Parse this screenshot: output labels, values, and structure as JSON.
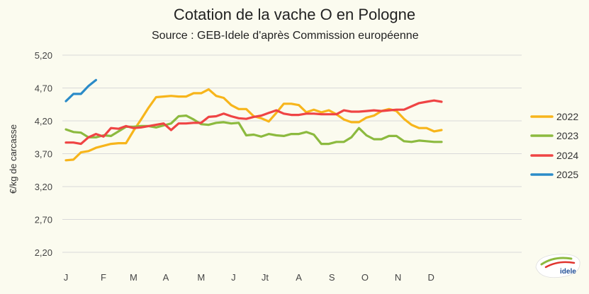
{
  "title": "Cotation de la vache O en Pologne",
  "subtitle": "Source : GEB-Idele d'après Commission européenne",
  "logo_text": "idele",
  "chart_data": {
    "type": "line",
    "ylabel": "€/kg de carcasse",
    "yticks": [
      "5,20",
      "4,70",
      "4,20",
      "3,70",
      "3,20",
      "2,70",
      "2,20"
    ],
    "ylim": [
      2.2,
      5.2
    ],
    "xlim": [
      0,
      52
    ],
    "months": [
      {
        "label": "J",
        "week": 0
      },
      {
        "label": "F",
        "week": 5
      },
      {
        "label": "M",
        "week": 9
      },
      {
        "label": "A",
        "week": 13.3
      },
      {
        "label": "M",
        "week": 18
      },
      {
        "label": "J",
        "week": 22.3
      },
      {
        "label": "Jt",
        "week": 26.5
      },
      {
        "label": "A",
        "week": 31
      },
      {
        "label": "S",
        "week": 35.4
      },
      {
        "label": "O",
        "week": 39.8
      },
      {
        "label": "N",
        "week": 44.2
      },
      {
        "label": "D",
        "week": 48.6
      }
    ],
    "grid": true,
    "legend": "right",
    "series": [
      {
        "name": "2022",
        "color": "#f7b51b",
        "points": [
          [
            0,
            3.6
          ],
          [
            1,
            3.61
          ],
          [
            2,
            3.72
          ],
          [
            3,
            3.74
          ],
          [
            4,
            3.79
          ],
          [
            5,
            3.82
          ],
          [
            6,
            3.85
          ],
          [
            7,
            3.86
          ],
          [
            8,
            3.86
          ],
          [
            9,
            4.05
          ],
          [
            10,
            4.22
          ],
          [
            11,
            4.4
          ],
          [
            12,
            4.56
          ],
          [
            13,
            4.57
          ],
          [
            14,
            4.58
          ],
          [
            15,
            4.57
          ],
          [
            16,
            4.57
          ],
          [
            17,
            4.62
          ],
          [
            18,
            4.62
          ],
          [
            19,
            4.68
          ],
          [
            20,
            4.58
          ],
          [
            21,
            4.55
          ],
          [
            22,
            4.44
          ],
          [
            23,
            4.38
          ],
          [
            24,
            4.38
          ],
          [
            25,
            4.27
          ],
          [
            26,
            4.24
          ],
          [
            27,
            4.19
          ],
          [
            28,
            4.32
          ],
          [
            29,
            4.46
          ],
          [
            30,
            4.46
          ],
          [
            31,
            4.44
          ],
          [
            32,
            4.33
          ],
          [
            33,
            4.37
          ],
          [
            34,
            4.33
          ],
          [
            35,
            4.36
          ],
          [
            36,
            4.3
          ],
          [
            37,
            4.22
          ],
          [
            38,
            4.18
          ],
          [
            39,
            4.18
          ],
          [
            40,
            4.25
          ],
          [
            41,
            4.28
          ],
          [
            42,
            4.35
          ],
          [
            43,
            4.38
          ],
          [
            44,
            4.35
          ],
          [
            45,
            4.23
          ],
          [
            46,
            4.14
          ],
          [
            47,
            4.09
          ],
          [
            48,
            4.09
          ],
          [
            49,
            4.04
          ],
          [
            50,
            4.06
          ]
        ]
      },
      {
        "name": "2023",
        "color": "#8cba3f",
        "points": [
          [
            0,
            4.07
          ],
          [
            1,
            4.03
          ],
          [
            2,
            4.02
          ],
          [
            3,
            3.95
          ],
          [
            4,
            3.95
          ],
          [
            5,
            3.98
          ],
          [
            6,
            3.97
          ],
          [
            7,
            4.04
          ],
          [
            8,
            4.11
          ],
          [
            9,
            4.11
          ],
          [
            10,
            4.12
          ],
          [
            11,
            4.12
          ],
          [
            12,
            4.1
          ],
          [
            13,
            4.13
          ],
          [
            14,
            4.16
          ],
          [
            15,
            4.27
          ],
          [
            16,
            4.28
          ],
          [
            17,
            4.22
          ],
          [
            18,
            4.15
          ],
          [
            19,
            4.14
          ],
          [
            20,
            4.17
          ],
          [
            21,
            4.18
          ],
          [
            22,
            4.16
          ],
          [
            23,
            4.17
          ],
          [
            24,
            3.98
          ],
          [
            25,
            3.99
          ],
          [
            26,
            3.96
          ],
          [
            27,
            4.0
          ],
          [
            28,
            3.98
          ],
          [
            29,
            3.97
          ],
          [
            30,
            4.0
          ],
          [
            31,
            4.0
          ],
          [
            32,
            4.03
          ],
          [
            33,
            3.99
          ],
          [
            34,
            3.85
          ],
          [
            35,
            3.85
          ],
          [
            36,
            3.88
          ],
          [
            37,
            3.88
          ],
          [
            38,
            3.95
          ],
          [
            39,
            4.09
          ],
          [
            40,
            3.98
          ],
          [
            41,
            3.92
          ],
          [
            42,
            3.92
          ],
          [
            43,
            3.97
          ],
          [
            44,
            3.97
          ],
          [
            45,
            3.89
          ],
          [
            46,
            3.88
          ],
          [
            47,
            3.9
          ],
          [
            48,
            3.89
          ],
          [
            49,
            3.88
          ],
          [
            50,
            3.88
          ]
        ]
      },
      {
        "name": "2024",
        "color": "#ef4444",
        "points": [
          [
            0,
            3.87
          ],
          [
            1,
            3.87
          ],
          [
            2,
            3.85
          ],
          [
            3,
            3.95
          ],
          [
            4,
            4.0
          ],
          [
            5,
            3.96
          ],
          [
            6,
            4.09
          ],
          [
            7,
            4.08
          ],
          [
            8,
            4.12
          ],
          [
            9,
            4.09
          ],
          [
            10,
            4.1
          ],
          [
            11,
            4.12
          ],
          [
            12,
            4.14
          ],
          [
            13,
            4.16
          ],
          [
            14,
            4.06
          ],
          [
            15,
            4.16
          ],
          [
            16,
            4.16
          ],
          [
            17,
            4.17
          ],
          [
            18,
            4.17
          ],
          [
            19,
            4.26
          ],
          [
            20,
            4.27
          ],
          [
            21,
            4.31
          ],
          [
            22,
            4.27
          ],
          [
            23,
            4.24
          ],
          [
            24,
            4.23
          ],
          [
            25,
            4.26
          ],
          [
            26,
            4.28
          ],
          [
            27,
            4.32
          ],
          [
            28,
            4.36
          ],
          [
            29,
            4.31
          ],
          [
            30,
            4.29
          ],
          [
            31,
            4.29
          ],
          [
            32,
            4.31
          ],
          [
            33,
            4.31
          ],
          [
            34,
            4.3
          ],
          [
            35,
            4.3
          ],
          [
            36,
            4.3
          ],
          [
            37,
            4.36
          ],
          [
            38,
            4.34
          ],
          [
            39,
            4.34
          ],
          [
            40,
            4.35
          ],
          [
            41,
            4.36
          ],
          [
            42,
            4.35
          ],
          [
            43,
            4.36
          ],
          [
            44,
            4.37
          ],
          [
            45,
            4.37
          ],
          [
            46,
            4.42
          ],
          [
            47,
            4.47
          ],
          [
            48,
            4.49
          ],
          [
            49,
            4.51
          ],
          [
            50,
            4.49
          ]
        ]
      },
      {
        "name": "2025",
        "color": "#2b8bc8",
        "points": [
          [
            0,
            4.5
          ],
          [
            1,
            4.61
          ],
          [
            2,
            4.61
          ],
          [
            3,
            4.73
          ],
          [
            4,
            4.82
          ]
        ]
      }
    ]
  }
}
